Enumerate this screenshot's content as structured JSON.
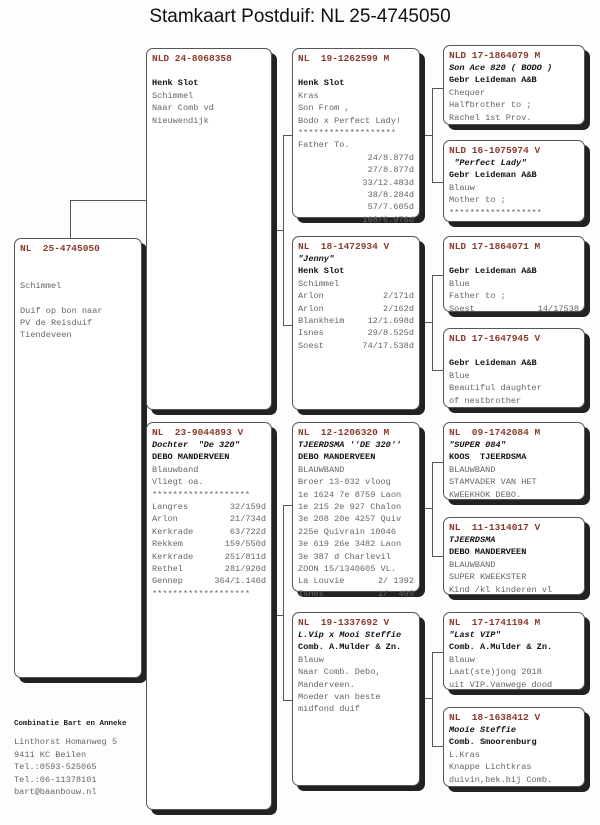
{
  "title": "Stamkaart Postduif: NL  25-4745050",
  "boxes": {
    "subject": {
      "header": "NL  25-4745050",
      "lines": [
        {
          "t": ""
        },
        {
          "t": ""
        },
        {
          "t": "Schimmel"
        },
        {
          "t": ""
        },
        {
          "t": "Duif op bon naar"
        },
        {
          "t": "PV de Reisduif"
        },
        {
          "t": "Tiendeveen"
        }
      ]
    },
    "sire": {
      "header": "NLD 24-8068358",
      "lines": [
        {
          "t": ""
        },
        {
          "t": "Henk Slot",
          "s": "b"
        },
        {
          "t": "Schimmel"
        },
        {
          "t": "Naar Comb vd"
        },
        {
          "t": "Nieuwendijk"
        }
      ]
    },
    "dam": {
      "header": "NL  23-9044893 V",
      "lines": [
        {
          "t": "Dochter  \"De 320\"",
          "s": "i"
        },
        {
          "t": "DEBO MANDERVEEN",
          "s": "b"
        },
        {
          "t": "Blauwband"
        },
        {
          "t": "Vliegt oa."
        },
        {
          "t": "*******************"
        },
        {
          "t": "Langres",
          "r": "32/159d"
        },
        {
          "t": "Arlon",
          "r": "21/734d"
        },
        {
          "t": "Kerkrade",
          "r": "63/722d"
        },
        {
          "t": "Rekkem",
          "r": "159/550d"
        },
        {
          "t": "Kerkrade",
          "r": "251/811d"
        },
        {
          "t": "Rethel",
          "r": "281/920d"
        },
        {
          "t": "Gennep",
          "r": "364/1.146d"
        },
        {
          "t": "*******************"
        }
      ]
    },
    "ss": {
      "header": "NL  19-1262599 M",
      "lines": [
        {
          "t": ""
        },
        {
          "t": "Henk Slot",
          "s": "b"
        },
        {
          "t": "Kras"
        },
        {
          "t": "Son From ,"
        },
        {
          "t": "Bodo x Perfect Lady!"
        },
        {
          "t": "*******************"
        },
        {
          "t": "Father To."
        },
        {
          "t": "",
          "r": "24/8.877d"
        },
        {
          "t": "",
          "r": "27/8.877d"
        },
        {
          "t": "",
          "r": "33/12.483d"
        },
        {
          "t": "",
          "r": "38/8.284d"
        },
        {
          "t": "",
          "r": "57/7.605d"
        },
        {
          "t": "",
          "r": "168/6.976d"
        }
      ]
    },
    "sd": {
      "header": "NL  18-1472934 V",
      "lines": [
        {
          "t": "\"Jenny\"",
          "s": "i"
        },
        {
          "t": "Henk Slot",
          "s": "b"
        },
        {
          "t": "Schimmel"
        },
        {
          "t": "Arlon",
          "r": "2/171d"
        },
        {
          "t": "Arlon",
          "r": "2/162d"
        },
        {
          "t": "Blankheim",
          "r": "12/1.698d"
        },
        {
          "t": "Isnes",
          "r": "29/8.525d"
        },
        {
          "t": "Soest",
          "r": "74/17.538d"
        }
      ]
    },
    "ds": {
      "header": "NL  12-1206320 M",
      "lines": [
        {
          "t": "TJEERDSMA ''DE 320''",
          "s": "i"
        },
        {
          "t": "DEBO MANDERVEEN",
          "s": "b"
        },
        {
          "t": "BLAUWBAND"
        },
        {
          "t": "Broer 13-032 vloog"
        },
        {
          "t": "1e 1624 7e 8759 Laon"
        },
        {
          "t": "1e 215 2e 927 Chalon"
        },
        {
          "t": "3e 208 20e 4257 Quiv"
        },
        {
          "t": "225e Quivrain 10046"
        },
        {
          "t": "3e 619 26e 3482 Laon"
        },
        {
          "t": "3e 387 d Charlevil"
        },
        {
          "t": "ZOON 15/1340605 VL."
        },
        {
          "t": "La Louvie",
          "r": "2/ 1392"
        },
        {
          "t": "Isnes",
          "r": "1/  495"
        }
      ]
    },
    "dd": {
      "header": "NL  19-1337692 V",
      "lines": [
        {
          "t": "L.Vip x Mooi Steffie",
          "s": "i"
        },
        {
          "t": "Comb. A.Mulder & Zn.",
          "s": "b"
        },
        {
          "t": "Blauw"
        },
        {
          "t": "Naar Comb. Debo,"
        },
        {
          "t": "Manderveen."
        },
        {
          "t": "Moeder van beste"
        },
        {
          "t": "midfond duif"
        }
      ]
    },
    "sss": {
      "header": "NLD 17-1864079 M",
      "lines": [
        {
          "t": "Son Ace 820 ( BODO )",
          "s": "i"
        },
        {
          "t": "Gebr Leideman A&B",
          "s": "b"
        },
        {
          "t": "Chequer"
        },
        {
          "t": "Halfbrother to ;"
        },
        {
          "t": "Rachel 1st Prov."
        }
      ]
    },
    "ssd": {
      "header": "NLD 16-1075974 V",
      "lines": [
        {
          "t": " \"Perfect Lady\"",
          "s": "i"
        },
        {
          "t": "Gebr Leideman A&B",
          "s": "b"
        },
        {
          "t": "Blauw"
        },
        {
          "t": "Mother to ;"
        },
        {
          "t": "******************"
        }
      ]
    },
    "sds": {
      "header": "NLD 17-1864071 M",
      "lines": [
        {
          "t": ""
        },
        {
          "t": "Gebr Leideman A&B",
          "s": "b"
        },
        {
          "t": "Blue"
        },
        {
          "t": "Father to ;"
        },
        {
          "t": "Soest",
          "r": "14/17538"
        }
      ]
    },
    "sdd": {
      "header": "NLD 17-1647945 V",
      "lines": [
        {
          "t": ""
        },
        {
          "t": "Gebr Leideman A&B",
          "s": "b"
        },
        {
          "t": "Blue"
        },
        {
          "t": "Beautiful daughter"
        },
        {
          "t": "of nestbrother"
        }
      ]
    },
    "dss": {
      "header": "NL  09-1742084 M",
      "lines": [
        {
          "t": "\"SUPER 084\"",
          "s": "i"
        },
        {
          "t": "KOOS  TJEERDSMA",
          "s": "b"
        },
        {
          "t": "BLAUWBAND"
        },
        {
          "t": "STAMVADER VAN HET"
        },
        {
          "t": "KWEEKHOK DEBO."
        }
      ]
    },
    "dsd": {
      "header": "NL  11-1314017 V",
      "lines": [
        {
          "t": "TJEERDSMA",
          "s": "i"
        },
        {
          "t": "DEBO MANDERVEEN",
          "s": "b"
        },
        {
          "t": "BLAUWBAND"
        },
        {
          "t": "SUPER KWEEKSTER"
        },
        {
          "t": "Kind /kl kinderen vl"
        }
      ]
    },
    "dds": {
      "header": "NL  17-1741194 M",
      "lines": [
        {
          "t": "\"Last VIP\"",
          "s": "i"
        },
        {
          "t": "Comb. A.Mulder & Zn.",
          "s": "b"
        },
        {
          "t": "Blauw"
        },
        {
          "t": "Laat(ste)jong 2018"
        },
        {
          "t": "uit VIP.Vanwege dood"
        }
      ]
    },
    "ddd": {
      "header": "NL  18-1638412 V",
      "lines": [
        {
          "t": "Mooie Steffie",
          "s": "i"
        },
        {
          "t": "Comb. Smoorenburg",
          "s": "b"
        },
        {
          "t": "L.Kras"
        },
        {
          "t": "Knappe Lichtkras"
        },
        {
          "t": "duivin,bek.bij Comb."
        }
      ]
    }
  },
  "footer": [
    "Combinatie Bart en Anneke",
    "Linthorst Homanweg 5",
    "9411 KC  Beilen",
    "Tel.:0593-525065",
    "Tel.:06-11378101",
    "bart@baanbouw.nl"
  ],
  "colors": {
    "header": "#8a3b2c",
    "text": "#666666",
    "bold": "#111111"
  }
}
